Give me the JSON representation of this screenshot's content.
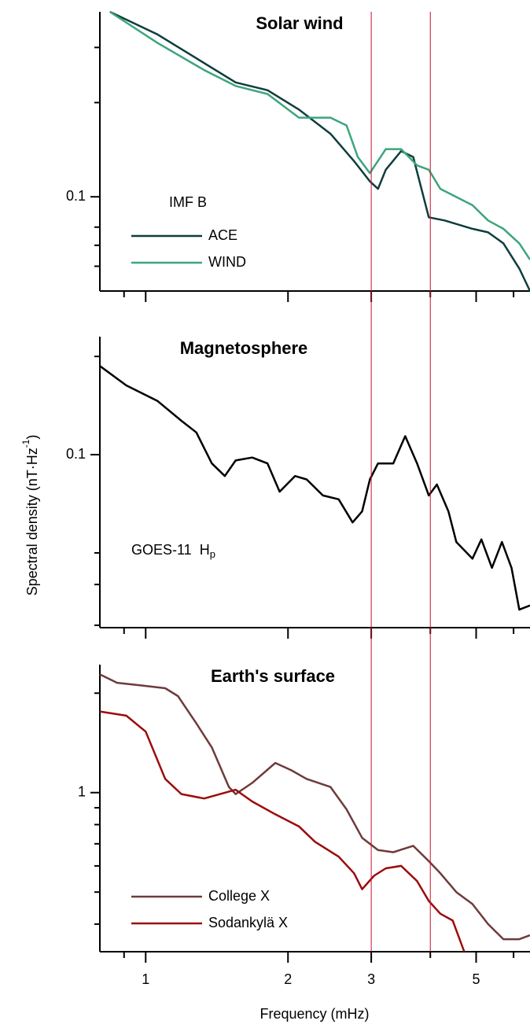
{
  "x_label": "Frequency (mHz)",
  "y_label": {
    "text": "Spectral density (nT·Hz",
    "sup": "-1",
    "tail": ")"
  },
  "xscale": "log",
  "xlim": [
    0.8,
    6.5
  ],
  "xticks": [
    1,
    2,
    3,
    5
  ],
  "xminorticks": [
    0.9,
    4,
    6
  ],
  "reference_lines": {
    "x": [
      3,
      4
    ],
    "color": "#c8102e"
  },
  "chart_data": [
    {
      "type": "line",
      "title": "Solar wind",
      "yscale": "log",
      "ylim": [
        0.05,
        0.39
      ],
      "yticks": [
        0.1
      ],
      "yminorticks": [
        0.06,
        0.07,
        0.08,
        0.2,
        0.3
      ],
      "legend_title": "IMF B",
      "legend": "lower left",
      "series": [
        {
          "name": "ACE",
          "color": "#0f3d3e",
          "x": [
            0.84,
            1.06,
            1.28,
            1.55,
            1.81,
            2.11,
            2.46,
            2.76,
            2.98,
            3.1,
            3.22,
            3.47,
            3.68,
            3.97,
            4.29,
            4.91,
            5.3,
            5.71,
            6.17,
            6.5
          ],
          "values": [
            0.39,
            0.33,
            0.277,
            0.232,
            0.219,
            0.19,
            0.159,
            0.13,
            0.112,
            0.106,
            0.122,
            0.14,
            0.134,
            0.086,
            0.084,
            0.079,
            0.077,
            0.071,
            0.059,
            0.05
          ]
        },
        {
          "name": "WIND",
          "color": "#3da57c",
          "x": [
            0.84,
            1.06,
            1.33,
            1.55,
            1.81,
            2.11,
            2.46,
            2.66,
            2.81,
            2.98,
            3.22,
            3.47,
            3.75,
            3.97,
            4.2,
            4.91,
            5.3,
            5.71,
            6.17,
            6.5
          ],
          "values": [
            0.39,
            0.31,
            0.254,
            0.226,
            0.213,
            0.179,
            0.179,
            0.169,
            0.134,
            0.119,
            0.142,
            0.142,
            0.126,
            0.122,
            0.106,
            0.094,
            0.084,
            0.079,
            0.071,
            0.063
          ]
        }
      ]
    },
    {
      "type": "line",
      "title": "Magnetosphere",
      "yscale": "log",
      "ylim": [
        0.0295,
        0.23
      ],
      "yticks": [
        0.1
      ],
      "yminorticks": [
        0.03,
        0.04,
        0.05,
        0.2
      ],
      "annotation": {
        "text": "GOES-11  H",
        "sub": "p"
      },
      "series": [
        {
          "name": "GOES-11",
          "color": "#000000",
          "x": [
            0.8,
            0.91,
            1.06,
            1.19,
            1.28,
            1.38,
            1.47,
            1.55,
            1.68,
            1.81,
            1.92,
            2.07,
            2.19,
            2.37,
            2.56,
            2.74,
            2.87,
            2.98,
            3.1,
            3.34,
            3.54,
            3.75,
            3.97,
            4.13,
            4.37,
            4.54,
            4.91,
            5.13,
            5.4,
            5.67,
            5.94,
            6.17,
            6.5
          ],
          "values": [
            0.187,
            0.163,
            0.146,
            0.127,
            0.117,
            0.094,
            0.086,
            0.096,
            0.098,
            0.094,
            0.077,
            0.086,
            0.084,
            0.075,
            0.073,
            0.062,
            0.067,
            0.084,
            0.094,
            0.094,
            0.114,
            0.094,
            0.075,
            0.081,
            0.067,
            0.054,
            0.048,
            0.055,
            0.045,
            0.054,
            0.045,
            0.0335,
            0.0345
          ]
        }
      ]
    },
    {
      "type": "line",
      "title": "Earth's surface",
      "yscale": "log",
      "ylim": [
        0.33,
        2.44
      ],
      "yticks": [
        1
      ],
      "yminorticks": [
        0.4,
        0.5,
        0.6,
        0.7,
        0.8,
        0.9,
        2
      ],
      "legend": "lower left",
      "series": [
        {
          "name": "College X",
          "color": "#6e3b3b",
          "x": [
            0.8,
            0.87,
            0.98,
            1.1,
            1.17,
            1.28,
            1.38,
            1.5,
            1.55,
            1.68,
            1.88,
            2.03,
            2.19,
            2.46,
            2.66,
            2.87,
            3.1,
            3.34,
            3.68,
            3.97,
            4.2,
            4.54,
            4.91,
            5.3,
            5.71,
            6.17,
            6.5
          ],
          "values": [
            2.28,
            2.15,
            2.11,
            2.07,
            1.96,
            1.62,
            1.37,
            1.04,
            0.99,
            1.07,
            1.23,
            1.17,
            1.1,
            1.04,
            0.89,
            0.73,
            0.67,
            0.66,
            0.69,
            0.62,
            0.57,
            0.5,
            0.46,
            0.4,
            0.36,
            0.36,
            0.37
          ]
        },
        {
          "name": "Sodankylä X",
          "color": "#9c0b0b",
          "x": [
            0.8,
            0.91,
            1.0,
            1.1,
            1.19,
            1.33,
            1.55,
            1.68,
            1.88,
            2.11,
            2.28,
            2.56,
            2.76,
            2.87,
            3.04,
            3.22,
            3.47,
            3.75,
            3.97,
            4.2,
            4.46,
            4.72
          ],
          "values": [
            1.76,
            1.71,
            1.53,
            1.1,
            0.99,
            0.96,
            1.02,
            0.94,
            0.86,
            0.79,
            0.71,
            0.64,
            0.57,
            0.51,
            0.56,
            0.59,
            0.6,
            0.54,
            0.47,
            0.43,
            0.41,
            0.33
          ]
        }
      ]
    }
  ]
}
